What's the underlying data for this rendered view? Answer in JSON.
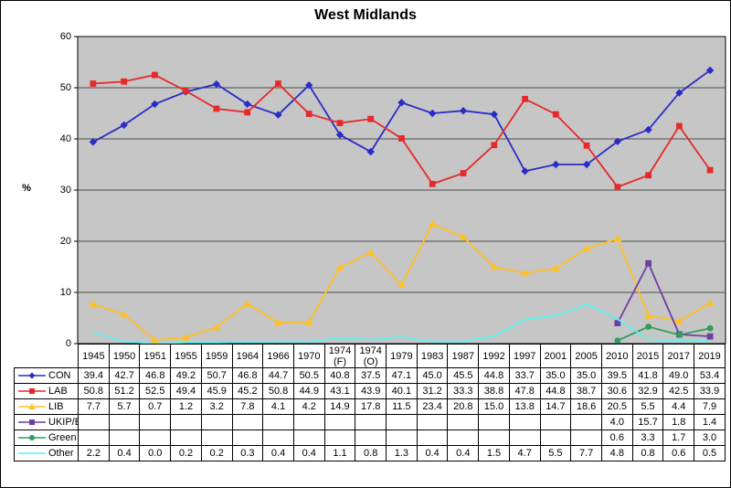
{
  "chart_data": {
    "type": "line",
    "title": "West Midlands",
    "xlabel": "",
    "ylabel": "%",
    "ylim": [
      0,
      60
    ],
    "yticks": [
      0,
      10,
      20,
      30,
      40,
      50,
      60
    ],
    "grid": "horizontal",
    "legend_position": "table-left",
    "plot_bg": "#c6c6c6",
    "gridline_color": "#4d4d4d",
    "categories": [
      "1945",
      "1950",
      "1951",
      "1955",
      "1959",
      "1964",
      "1966",
      "1970",
      "1974 (F)",
      "1974 (O)",
      "1979",
      "1983",
      "1987",
      "1992",
      "1997",
      "2001",
      "2005",
      "2010",
      "2015",
      "2017",
      "2019"
    ],
    "series": [
      {
        "name": "CON",
        "color": "#2b2bc8",
        "marker": "diamond",
        "values": [
          39.4,
          42.7,
          46.8,
          49.2,
          50.7,
          46.8,
          44.7,
          50.5,
          40.8,
          37.5,
          47.1,
          45.0,
          45.5,
          44.8,
          33.7,
          35.0,
          35.0,
          39.5,
          41.8,
          49.0,
          53.4
        ]
      },
      {
        "name": "LAB",
        "color": "#e62a2a",
        "marker": "square",
        "values": [
          50.8,
          51.2,
          52.5,
          49.4,
          45.9,
          45.2,
          50.8,
          44.9,
          43.1,
          43.9,
          40.1,
          31.2,
          33.3,
          38.8,
          47.8,
          44.8,
          38.7,
          30.6,
          32.9,
          42.5,
          33.9
        ]
      },
      {
        "name": "LIB",
        "color": "#ffc125",
        "marker": "triangle",
        "values": [
          7.7,
          5.7,
          0.7,
          1.2,
          3.2,
          7.8,
          4.1,
          4.2,
          14.9,
          17.8,
          11.5,
          23.4,
          20.8,
          15.0,
          13.8,
          14.7,
          18.6,
          20.5,
          5.5,
          4.4,
          7.9
        ]
      },
      {
        "name": "UKIP/Br",
        "color": "#6e3fa3",
        "marker": "square",
        "values": [
          null,
          null,
          null,
          null,
          null,
          null,
          null,
          null,
          null,
          null,
          null,
          null,
          null,
          null,
          null,
          null,
          null,
          4.0,
          15.7,
          1.8,
          1.4
        ]
      },
      {
        "name": "Green",
        "color": "#2ca05c",
        "marker": "circle",
        "values": [
          null,
          null,
          null,
          null,
          null,
          null,
          null,
          null,
          null,
          null,
          null,
          null,
          null,
          null,
          null,
          null,
          null,
          0.6,
          3.3,
          1.7,
          3.0
        ]
      },
      {
        "name": "Other",
        "color": "#5ef0f0",
        "marker": "none",
        "values": [
          2.2,
          0.4,
          0.0,
          0.2,
          0.2,
          0.3,
          0.4,
          0.4,
          1.1,
          0.8,
          1.3,
          0.4,
          0.4,
          1.5,
          4.7,
          5.5,
          7.7,
          4.8,
          0.8,
          0.6,
          0.5
        ]
      }
    ]
  }
}
